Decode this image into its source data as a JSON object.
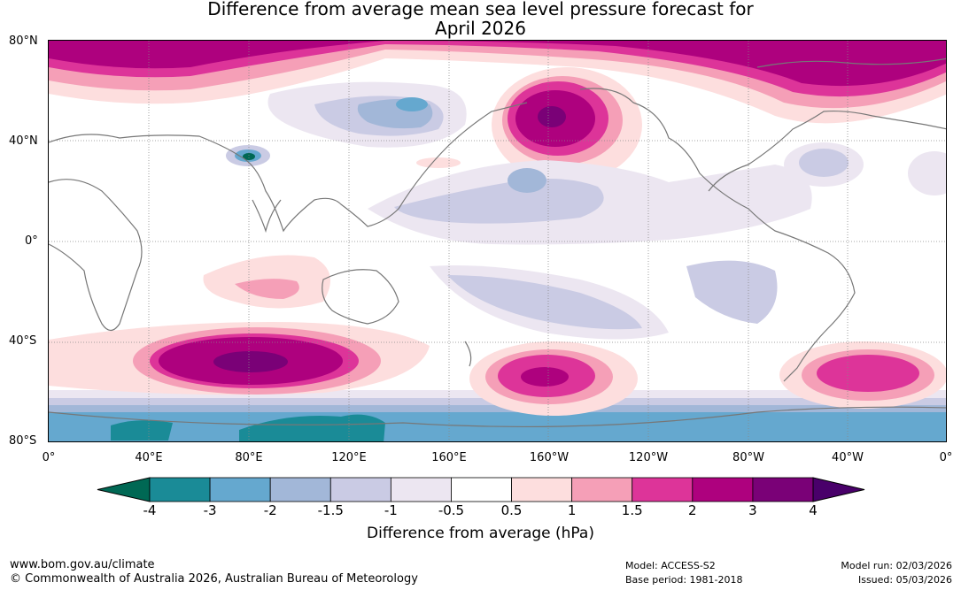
{
  "title": {
    "line1": "Difference from average mean sea level pressure forecast for",
    "line2": "April 2026"
  },
  "map": {
    "lat_labels": [
      "80°N",
      "40°N",
      "0°",
      "40°S",
      "80°S"
    ],
    "lon_labels": [
      "0°",
      "40°E",
      "80°E",
      "120°E",
      "160°E",
      "160°W",
      "120°W",
      "80°W",
      "40°W",
      "0°"
    ]
  },
  "colorbar": {
    "label": "Difference from average (hPa)",
    "ticks": [
      "-4",
      "-3",
      "-2",
      "-1.5",
      "-1",
      "-0.5",
      "0.5",
      "1",
      "1.5",
      "2",
      "3",
      "4"
    ],
    "colors": {
      "below_min": "#006854",
      "bins": [
        "#1a8b97",
        "#65a8cf",
        "#a2b7d8",
        "#cacbe4",
        "#ece6f1",
        "#ffffff",
        "#fddede",
        "#f59fb7",
        "#dd3499",
        "#ae017e",
        "#7a0177"
      ],
      "above_max": "#49006a"
    }
  },
  "footer": {
    "website": "www.bom.gov.au/climate",
    "copyright": "© Commonwealth of Australia 2026, Australian Bureau of Meteorology",
    "model": "Model: ACCESS-S2",
    "base_period": "Base period: 1981-2018",
    "model_run": "Model run: 02/03/2026",
    "issued": "Issued: 05/03/2026"
  }
}
